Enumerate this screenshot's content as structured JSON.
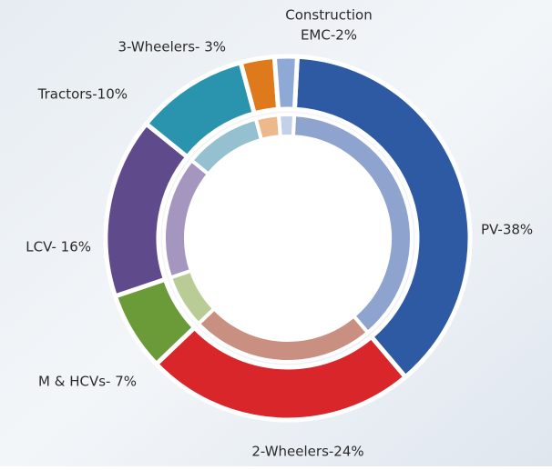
{
  "chart_data": {
    "type": "donut",
    "categories": [
      "PV",
      "2-Wheelers",
      "M & HCVs",
      "LCV",
      "Tractors",
      "3-Wheelers",
      "Construction EMC"
    ],
    "values": [
      38,
      24,
      7,
      16,
      10,
      3,
      2
    ],
    "value_labels": [
      [
        "PV-38%"
      ],
      [
        "2-Wheelers-24%"
      ],
      [
        "M & HCVs- 7%"
      ],
      [
        "LCV- 16%"
      ],
      [
        "Tractors-10%"
      ],
      [
        "3-Wheelers- 3%"
      ],
      [
        "Construction",
        "EMC-2%"
      ]
    ],
    "colors": [
      "#2d5aa3",
      "#d8262b",
      "#6b9a38",
      "#5f4a8c",
      "#2a93ad",
      "#df7a1c",
      "#8ea9d6"
    ],
    "inner_colors": [
      "#8fa3cf",
      "#c98f80",
      "#b9cc96",
      "#a596c0",
      "#94c0cf",
      "#edb98a",
      "#c3d0ea"
    ]
  }
}
